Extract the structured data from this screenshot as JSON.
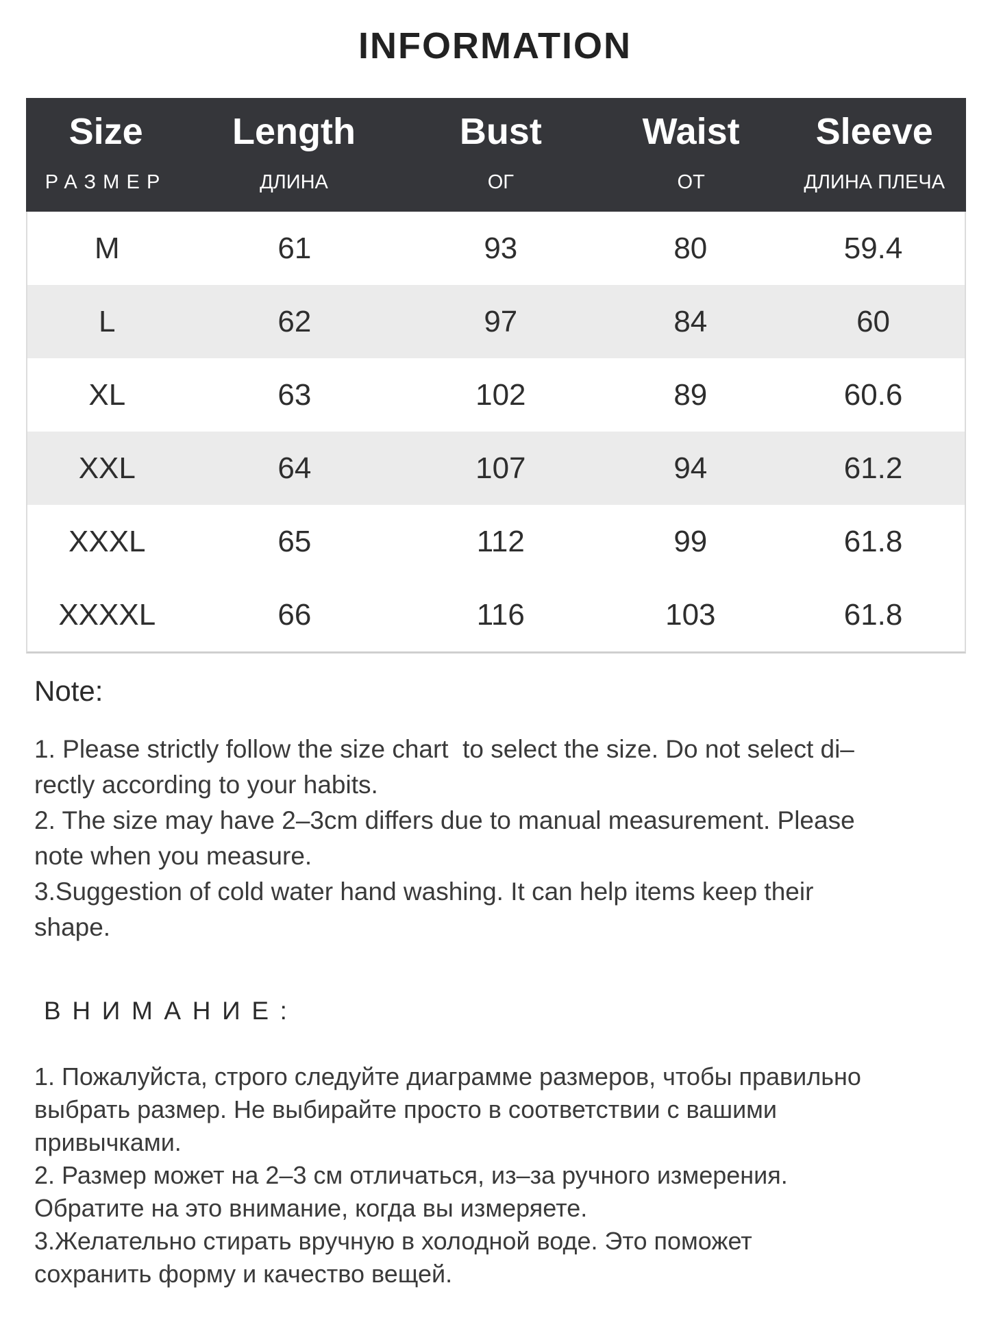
{
  "title": "INFORMATION",
  "colors": {
    "header_bg": "#35363a",
    "row_alt": "#ebebeb",
    "table_border": "#dcdcdc",
    "text": "#3a3a3a",
    "title_text": "#222222"
  },
  "size_table": {
    "columns": [
      {
        "en": "Size",
        "ru": "РАЗМЕР"
      },
      {
        "en": "Length",
        "ru": "ДЛИНА"
      },
      {
        "en": "Bust",
        "ru": "ОГ"
      },
      {
        "en": "Waist",
        "ru": "ОТ"
      },
      {
        "en": "Sleeve",
        "ru": "ДЛИНА ПЛЕЧА"
      }
    ],
    "rows": [
      {
        "size": "M",
        "length": "61",
        "bust": "93",
        "waist": "80",
        "sleeve": "59.4"
      },
      {
        "size": "L",
        "length": "62",
        "bust": "97",
        "waist": "84",
        "sleeve": "60"
      },
      {
        "size": "XL",
        "length": "63",
        "bust": "102",
        "waist": "89",
        "sleeve": "60.6"
      },
      {
        "size": "XXL",
        "length": "64",
        "bust": "107",
        "waist": "94",
        "sleeve": "61.2"
      },
      {
        "size": "XXXL",
        "length": "65",
        "bust": "112",
        "waist": "99",
        "sleeve": "61.8"
      },
      {
        "size": "XXXXL",
        "length": "66",
        "bust": "116",
        "waist": "103",
        "sleeve": "61.8"
      }
    ]
  },
  "notes_en": {
    "heading": "Note:",
    "lines": [
      "1. Please strictly follow the size chart  to select the size. Do not select di–",
      "rectly according to your habits.",
      "2. The size may have 2–3cm differs due to manual measurement. Please",
      "note when you measure.",
      "3.Suggestion of cold water hand washing. It can help items keep their",
      "shape."
    ]
  },
  "notes_ru": {
    "heading": "ВНИМАНИЕ:",
    "lines": [
      "1. Пожалуйста, строго следуйте диаграмме размеров, чтобы правильно",
      "выбрать размер. Не выбирайте просто в соответствии с вашими",
      "привычками.",
      "2. Размер может на 2–3 см отличаться, из–за ручного измерения.",
      "Обратите на это внимание, когда вы измеряете.",
      "3.Желательно стирать вручную в холодной воде. Это поможет",
      "сохранить форму и качество вещей."
    ]
  }
}
